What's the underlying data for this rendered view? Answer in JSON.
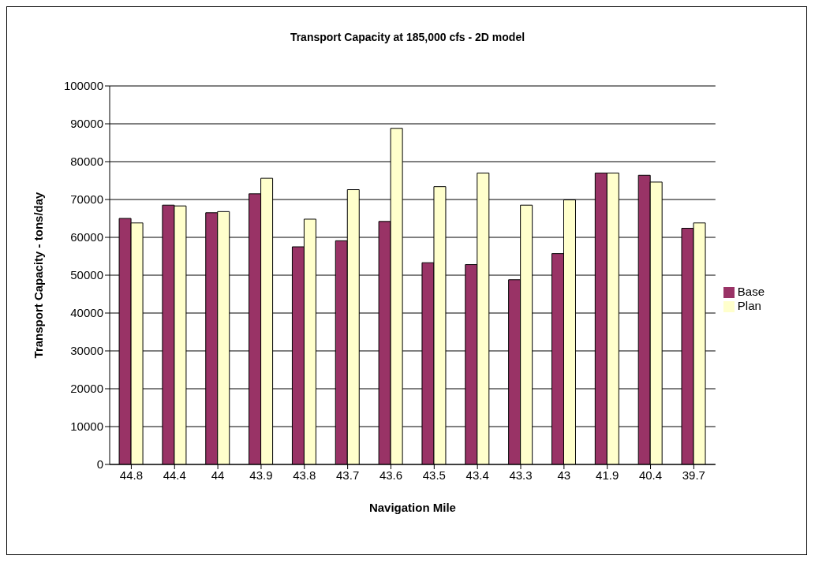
{
  "chart_data": {
    "type": "bar",
    "title": "Transport Capacity at 185,000 cfs - 2D model",
    "xlabel": "Navigation Mile",
    "ylabel": "Transport Capacity - tons/day",
    "categories": [
      "44.8",
      "44.4",
      "44",
      "43.9",
      "43.8",
      "43.7",
      "43.6",
      "43.5",
      "43.4",
      "43.3",
      "43",
      "41.9",
      "40.4",
      "39.7"
    ],
    "series": [
      {
        "name": "Base",
        "color": "#993366",
        "values": [
          65000,
          68500,
          66500,
          71500,
          57500,
          59100,
          64200,
          53300,
          52800,
          48800,
          55700,
          77000,
          76400,
          62400
        ]
      },
      {
        "name": "Plan",
        "color": "#ffffcc",
        "values": [
          63800,
          68300,
          66800,
          75600,
          64800,
          72600,
          88800,
          73400,
          77000,
          68500,
          69900,
          77000,
          74600,
          63800
        ]
      }
    ],
    "ylim": [
      0,
      100000
    ],
    "yticks": [
      0,
      10000,
      20000,
      30000,
      40000,
      50000,
      60000,
      70000,
      80000,
      90000,
      100000
    ],
    "grid": "y",
    "legend": "right"
  }
}
